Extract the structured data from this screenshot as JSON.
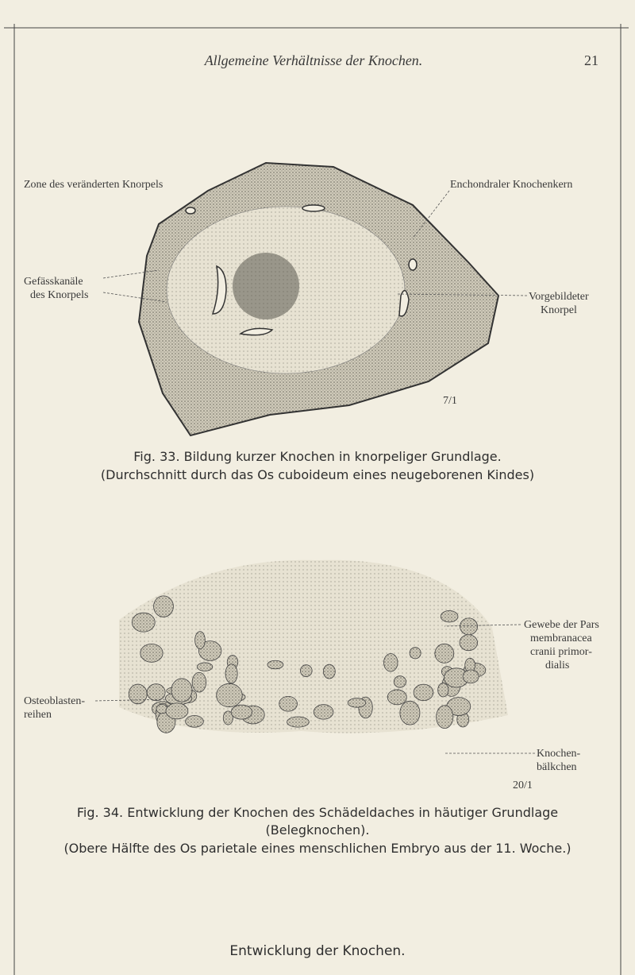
{
  "header": {
    "title": "Allgemeine Verhältnisse der Knochen.",
    "page_number": "21"
  },
  "figure_33": {
    "labels": {
      "zone": [
        "Zone des veränderten Knorpels"
      ],
      "knochenkern": [
        "Enchondraler Knochenkern"
      ],
      "gefaesskanaele": [
        "Gefässkanäle",
        "des Knorpels"
      ],
      "vorgebildeter": [
        "Vorgebildeter",
        "Knorpel"
      ],
      "scale": "7/1"
    },
    "caption": [
      "Fig. 33. Bildung kurzer Knochen in knorpeliger Grundlage.",
      "(Durchschnitt durch das Os cuboideum eines neugeborenen Kindes)"
    ]
  },
  "figure_34": {
    "labels": {
      "gewebe": [
        "Gewebe der Pars",
        "membranacea",
        "cranii primor-",
        "dialis"
      ],
      "osteoblasten": [
        "Osteoblasten-",
        "reihen"
      ],
      "baelkchen": [
        "Knochen-",
        "bälkchen"
      ],
      "scale": "20/1"
    },
    "caption": [
      "Fig. 34. Entwicklung der Knochen des Schädeldaches in häutiger Grundlage",
      "(Belegknochen).",
      "(Obere Hälfte des Os parietale eines menschlichen Embryo aus der 11. Woche.)"
    ]
  },
  "footer": {
    "text": "Entwicklung der Knochen."
  }
}
